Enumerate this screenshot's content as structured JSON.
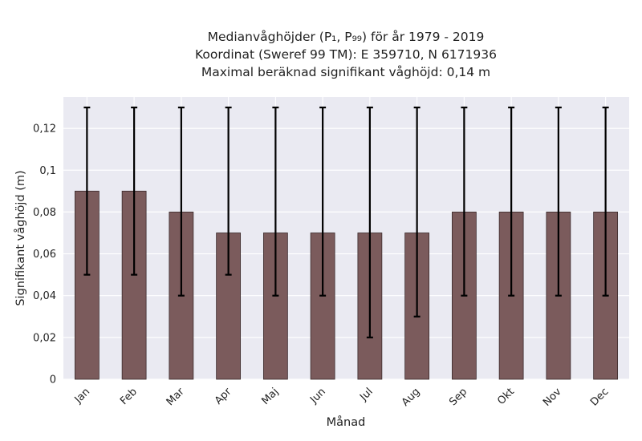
{
  "chart_data": {
    "type": "bar",
    "title_lines": [
      "Medianvåghöjder (P₁, P₉₉) för år 1979 - 2019",
      "Koordinat (Sweref 99 TM): E 359710, N 6171936",
      "Maximal beräknad signifikant våghöjd: 0,14 m"
    ],
    "xlabel": "Månad",
    "ylabel": "Signifikant våghöjd (m)",
    "categories": [
      "Jan",
      "Feb",
      "Mar",
      "Apr",
      "Maj",
      "Jun",
      "Jul",
      "Aug",
      "Sep",
      "Okt",
      "Nov",
      "Dec"
    ],
    "values": [
      0.09,
      0.09,
      0.08,
      0.07,
      0.07,
      0.07,
      0.07,
      0.07,
      0.08,
      0.08,
      0.08,
      0.08
    ],
    "err_low": [
      0.05,
      0.05,
      0.04,
      0.05,
      0.04,
      0.04,
      0.02,
      0.03,
      0.04,
      0.04,
      0.04,
      0.04
    ],
    "err_high": [
      0.13,
      0.13,
      0.13,
      0.13,
      0.13,
      0.13,
      0.13,
      0.13,
      0.13,
      0.13,
      0.13,
      0.13
    ],
    "ylim": [
      0,
      0.135
    ],
    "yticks": [
      0,
      0.02,
      0.04,
      0.06,
      0.08,
      0.1,
      0.12
    ],
    "ytick_labels": [
      "0",
      "0,02",
      "0,04",
      "0,06",
      "0,08",
      "0,1",
      "0,12"
    ],
    "grid": true,
    "colors": {
      "plot_background": "#eaeaf2",
      "bar_fill": "#7b5b5c",
      "error_bar": "#000000"
    }
  }
}
